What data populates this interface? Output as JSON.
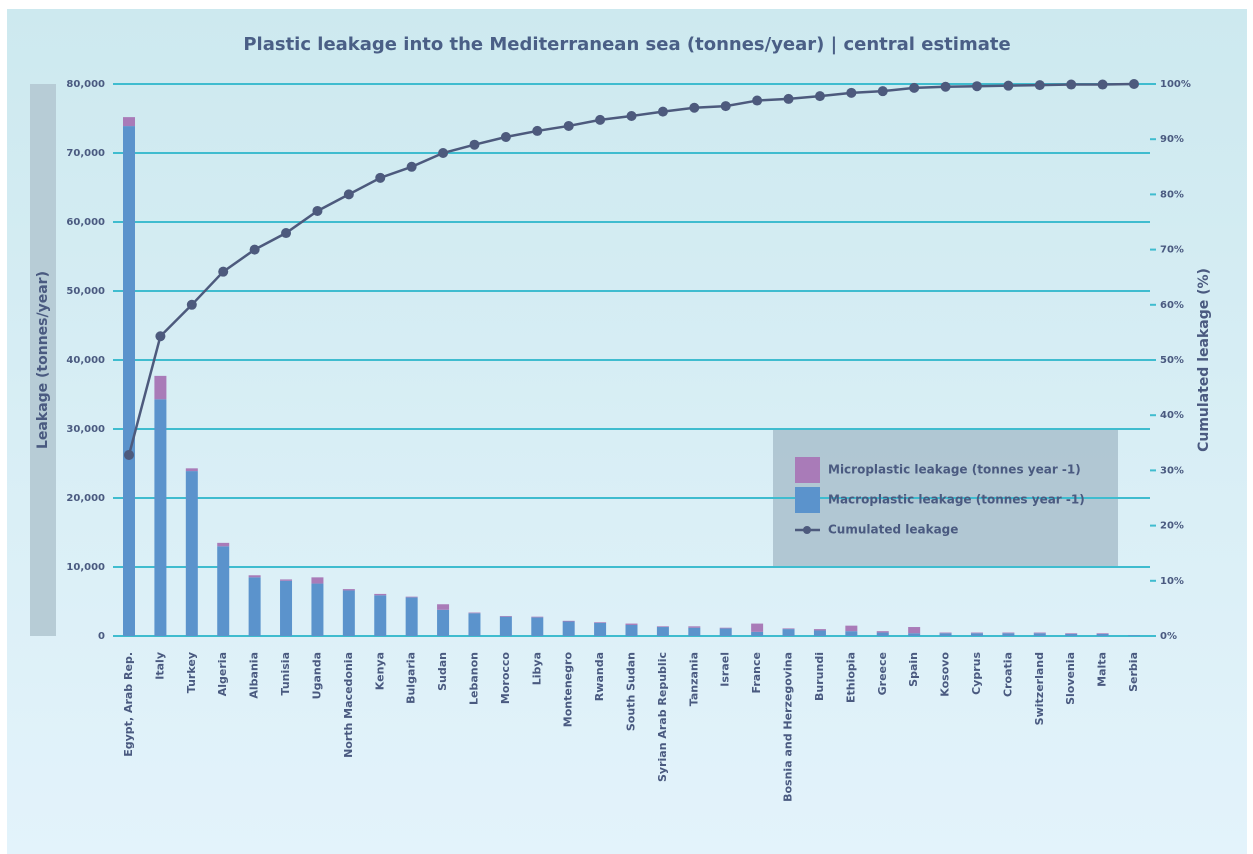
{
  "chart_data": {
    "type": "bar",
    "stacked": true,
    "title": "Plastic leakage into the Mediterranean sea (tonnes/year) | central estimate",
    "ylabel": "Leakage (tonnes/year)",
    "y2label": "Cumulated leakage (%)",
    "categories": [
      "Egypt, Arab Rep.",
      "Italy",
      "Turkey",
      "Algeria",
      "Albania",
      "Tunisia",
      "Uganda",
      "North Macedonia",
      "Kenya",
      "Bulgaria",
      "Sudan",
      "Lebanon",
      "Morocco",
      "Libya",
      "Montenegro",
      "Rwanda",
      "South Sudan",
      "Syrian Arab Republic",
      "Tanzania",
      "Israel",
      "France",
      "Bosnia and Herzegovina",
      "Burundi",
      "Ethiopia",
      "Greece",
      "Spain",
      "Kosovo",
      "Cyprus",
      "Croatia",
      "Switzerland",
      "Slovenia",
      "Malta",
      "Serbia"
    ],
    "series": [
      {
        "name": "Microplastic leakage (tonnes year -1)",
        "color": "#a97bb8",
        "values": [
          1300,
          3400,
          400,
          500,
          300,
          200,
          900,
          200,
          200,
          100,
          800,
          100,
          100,
          100,
          100,
          100,
          200,
          100,
          200,
          100,
          1200,
          100,
          200,
          800,
          200,
          900,
          100,
          100,
          100,
          100,
          100,
          100,
          0
        ]
      },
      {
        "name": "Macroplastic leakage (tonnes year -1)",
        "color": "#5b93cc",
        "values": [
          73900,
          34300,
          23900,
          13000,
          8500,
          8000,
          7600,
          6600,
          5900,
          5600,
          3800,
          3300,
          2800,
          2700,
          2100,
          1900,
          1600,
          1300,
          1200,
          1100,
          600,
          1000,
          800,
          700,
          500,
          400,
          400,
          400,
          400,
          400,
          300,
          300,
          100
        ]
      },
      {
        "name": "Cumulated leakage",
        "color": "#4d5a7d",
        "axis": "y2",
        "values": [
          32.8,
          54.3,
          60,
          66,
          70,
          73,
          77,
          80,
          83,
          85,
          87.5,
          89,
          90.4,
          91.5,
          92.4,
          93.5,
          94.2,
          95,
          95.7,
          96,
          97,
          97.3,
          97.8,
          98.4,
          98.7,
          99.3,
          99.5,
          99.6,
          99.7,
          99.8,
          99.9,
          99.9,
          100
        ]
      }
    ],
    "ylim": [
      0,
      80000
    ],
    "yticks": [
      0,
      {
        "value": 10000,
        "label": "10,000"
      },
      {
        "value": 20000,
        "label": "20,000"
      },
      {
        "value": 30000,
        "label": "30,000"
      },
      {
        "value": 40000,
        "label": "40,000"
      },
      {
        "value": 50000,
        "label": "50,000"
      },
      {
        "value": 60000,
        "label": "60,000"
      },
      {
        "value": 70000,
        "label": "70,000"
      },
      {
        "value": 80000,
        "label": "80,000"
      }
    ],
    "y2lim": [
      0,
      100
    ],
    "y2ticks": [
      {
        "value": 0,
        "label": "0%"
      },
      {
        "value": 10,
        "label": "10%"
      },
      {
        "value": 20,
        "label": "20%"
      },
      {
        "value": 30,
        "label": "30%"
      },
      {
        "value": 40,
        "label": "40%"
      },
      {
        "value": 50,
        "label": "50%"
      },
      {
        "value": 60,
        "label": "60%"
      },
      {
        "value": 70,
        "label": "70%"
      },
      {
        "value": 80,
        "label": "80%"
      },
      {
        "value": 90,
        "label": "90%"
      },
      {
        "value": 100,
        "label": "100%"
      }
    ],
    "grid": true
  }
}
